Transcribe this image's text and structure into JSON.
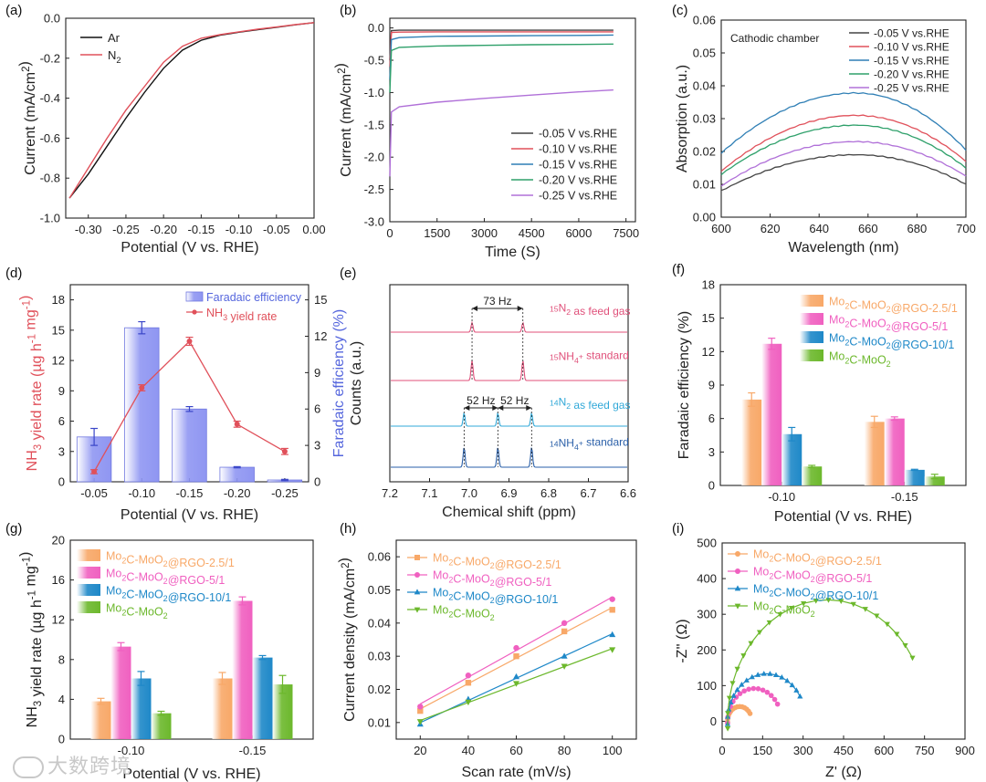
{
  "colors": {
    "ar": "#111111",
    "n2": "#e0505a",
    "v005": "#444444",
    "v010": "#e0505a",
    "v015": "#2f7fb5",
    "v020": "#2ea06a",
    "v025": "#b070d8",
    "nh3": "#e0505a",
    "fe_bar": "#8f96f2",
    "fe_axis": "#5566dd",
    "m25": "#f8a868",
    "m5": "#f060c0",
    "m10": "#1e88c8",
    "m0": "#6cb82c",
    "nmr15": "#e0507a",
    "nmr14": "#30a8d8",
    "nmr14std": "#2a5fa8"
  },
  "watermark": "大数跨境",
  "chart_data": [
    {
      "panel": "(a)",
      "type": "line",
      "xlabel": "Potential (V vs. RHE)",
      "ylabel": "Current (mA/cm²)",
      "xlim": [
        -0.33,
        0.0
      ],
      "ylim": [
        -1.0,
        0.0
      ],
      "xticks": [
        "-0.30",
        "-0.25",
        "-0.20",
        "-0.15",
        "-0.10",
        "-0.05",
        "0.00"
      ],
      "yticks": [
        "0.0",
        "-0.2",
        "-0.4",
        "-0.6",
        "-0.8",
        "-1.0"
      ],
      "legend": "top-left",
      "series": [
        {
          "name": "Ar",
          "x": [
            -0.325,
            -0.3,
            -0.275,
            -0.25,
            -0.225,
            -0.2,
            -0.175,
            -0.15,
            -0.125,
            -0.1,
            -0.075,
            -0.05,
            -0.025,
            0.0
          ],
          "y": [
            -0.9,
            -0.78,
            -0.64,
            -0.5,
            -0.37,
            -0.25,
            -0.16,
            -0.11,
            -0.085,
            -0.07,
            -0.057,
            -0.045,
            -0.033,
            -0.022
          ]
        },
        {
          "name": "N2",
          "x": [
            -0.325,
            -0.3,
            -0.275,
            -0.25,
            -0.225,
            -0.2,
            -0.175,
            -0.15,
            -0.125,
            -0.1,
            -0.075,
            -0.05,
            -0.025,
            0.0
          ],
          "y": [
            -0.9,
            -0.75,
            -0.6,
            -0.46,
            -0.34,
            -0.22,
            -0.14,
            -0.1,
            -0.082,
            -0.068,
            -0.055,
            -0.044,
            -0.032,
            -0.022
          ]
        }
      ]
    },
    {
      "panel": "(b)",
      "type": "line",
      "xlabel": "Time (S)",
      "ylabel": "Current (mA/cm²)",
      "xlim": [
        0,
        7800
      ],
      "ylim": [
        -3.0,
        0.15
      ],
      "xticks": [
        "0",
        "1500",
        "3000",
        "4500",
        "6000",
        "7500"
      ],
      "yticks": [
        "0.0",
        "-0.5",
        "-1.0",
        "-1.5",
        "-2.0",
        "-2.5",
        "-3.0"
      ],
      "legend": "bottom-right",
      "series": [
        {
          "name": "-0.05 V vs.RHE",
          "x": [
            0,
            50,
            300,
            1500,
            3000,
            4500,
            6000,
            7100
          ],
          "y": [
            -0.5,
            -0.04,
            -0.035,
            -0.035,
            -0.035,
            -0.035,
            -0.035,
            -0.035
          ]
        },
        {
          "name": "-0.10 V vs.RHE",
          "x": [
            0,
            50,
            300,
            1500,
            3000,
            4500,
            6000,
            7100
          ],
          "y": [
            -0.6,
            -0.07,
            -0.065,
            -0.06,
            -0.06,
            -0.06,
            -0.06,
            -0.06
          ]
        },
        {
          "name": "-0.15 V vs.RHE",
          "x": [
            0,
            50,
            300,
            1500,
            3000,
            4500,
            6000,
            7100
          ],
          "y": [
            -0.8,
            -0.18,
            -0.15,
            -0.13,
            -0.125,
            -0.12,
            -0.115,
            -0.11
          ]
        },
        {
          "name": "-0.20 V vs.RHE",
          "x": [
            0,
            50,
            300,
            1500,
            3000,
            4500,
            6000,
            7100
          ],
          "y": [
            -1.0,
            -0.35,
            -0.3,
            -0.28,
            -0.27,
            -0.26,
            -0.255,
            -0.25
          ]
        },
        {
          "name": "-0.25 V vs.RHE",
          "x": [
            0,
            50,
            300,
            1500,
            3000,
            4500,
            6000,
            7100
          ],
          "y": [
            -2.3,
            -1.3,
            -1.22,
            -1.15,
            -1.09,
            -1.04,
            -0.99,
            -0.96
          ]
        }
      ]
    },
    {
      "panel": "(c)",
      "type": "line",
      "xlabel": "Wavelength (nm)",
      "ylabel": "Absorption (a.u.)",
      "xlim": [
        600,
        700
      ],
      "ylim": [
        0.0,
        0.06
      ],
      "xticks": [
        "600",
        "620",
        "640",
        "660",
        "680",
        "700"
      ],
      "yticks": [
        "0.00",
        "0.01",
        "0.02",
        "0.03",
        "0.04",
        "0.05",
        "0.06"
      ],
      "annotation": "Cathodic chamber",
      "legend": "top-right",
      "series": [
        {
          "name": "-0.05 V vs.RHE",
          "peak": 0.019,
          "edgeL": 0.008,
          "edgeR": 0.01
        },
        {
          "name": "-0.10 V vs.RHE",
          "peak": 0.031,
          "edgeL": 0.014,
          "edgeR": 0.017
        },
        {
          "name": "-0.15 V vs.RHE",
          "peak": 0.0378,
          "edgeL": 0.0195,
          "edgeR": 0.0205
        },
        {
          "name": "-0.20 V vs.RHE",
          "peak": 0.028,
          "edgeL": 0.013,
          "edgeR": 0.015
        },
        {
          "name": "-0.25 V vs.RHE",
          "peak": 0.023,
          "edgeL": 0.0095,
          "edgeR": 0.0125
        }
      ]
    },
    {
      "panel": "(d)",
      "type": "bar+line",
      "categories": [
        "-0.05",
        "-0.10",
        "-0.15",
        "-0.20",
        "-0.25"
      ],
      "xlabel": "Potential (V vs. RHE)",
      "ylabel": "NH3 yield rate (µg h⁻¹ mg⁻¹)",
      "ylabel_right": "Faradaic efficiency (%)",
      "ylim": [
        0,
        19.5
      ],
      "ylim_right": [
        0,
        16.25
      ],
      "yticks": [
        "0",
        "3",
        "6",
        "9",
        "12",
        "15",
        "18"
      ],
      "yticks_right": [
        "0",
        "3",
        "6",
        "9",
        "12",
        "15"
      ],
      "legend": "top-right",
      "bar_series": {
        "name": "Faradaic efficiency",
        "values": [
          3.7,
          12.7,
          6.0,
          1.2,
          0.15
        ],
        "err": [
          0.7,
          0.5,
          0.2,
          0.05,
          0.05
        ]
      },
      "line_series": {
        "name": "NH3 yield rate",
        "values": [
          1.0,
          9.3,
          13.9,
          5.7,
          3.0
        ],
        "err": [
          0.2,
          0.3,
          0.4,
          0.3,
          0.3
        ]
      }
    },
    {
      "panel": "(e)",
      "type": "line",
      "xlabel": "Chemical shift (ppm)",
      "ylabel": "Counts (a.u.)",
      "xlim": [
        7.2,
        6.6
      ],
      "xticks": [
        "7.2",
        "7.1",
        "7.0",
        "6.9",
        "6.8",
        "6.7",
        "6.6"
      ],
      "annotations": [
        "73 Hz",
        "52 Hz",
        "52 Hz"
      ],
      "series": [
        {
          "name": "15N2 as feed gas",
          "label_sup": "15",
          "label_main": "N",
          "label_sub": "2",
          "label_rest": " as feed gas",
          "peaks": [
            6.993,
            6.865
          ],
          "height": 0.4
        },
        {
          "name": "15NH4+ standard",
          "label_sup": "15",
          "label_main": "NH",
          "label_sub": "4",
          "label_supr": "+",
          "label_rest": " standard",
          "peaks": [
            6.993,
            6.865
          ],
          "height": 0.85
        },
        {
          "name": "14N2 as feed gas",
          "label_sup": "14",
          "label_main": "N",
          "label_sub": "2",
          "label_rest": " as feed gas",
          "peaks": [
            7.013,
            6.928,
            6.843
          ],
          "height": 0.55
        },
        {
          "name": "14NH4+ standard",
          "label_sup": "14",
          "label_main": "NH",
          "label_sub": "4",
          "label_supr": "+",
          "label_rest": " standard",
          "peaks": [
            7.013,
            6.928,
            6.843
          ],
          "height": 0.85
        }
      ]
    },
    {
      "panel": "(f)",
      "type": "bar",
      "categories": [
        "-0.10",
        "-0.15"
      ],
      "xlabel": "Potential (V vs. RHE)",
      "ylabel": "Faradaic efficiency (%)",
      "ylim": [
        0,
        18
      ],
      "yticks": [
        "0",
        "3",
        "6",
        "9",
        "12",
        "15",
        "18"
      ],
      "legend": "top-right",
      "series": [
        {
          "name": "Mo2C-MoO2@RGO-2.5/1",
          "values": [
            7.7,
            5.7
          ],
          "err": [
            0.6,
            0.5
          ]
        },
        {
          "name": "Mo2C-MoO2@RGO-5/1",
          "values": [
            12.7,
            6.0
          ],
          "err": [
            0.5,
            0.15
          ]
        },
        {
          "name": "Mo2C-MoO2@RGO-10/1",
          "values": [
            4.6,
            1.4
          ],
          "err": [
            0.6,
            0.05
          ]
        },
        {
          "name": "Mo2C-MoO2",
          "values": [
            1.7,
            0.8
          ],
          "err": [
            0.1,
            0.2
          ]
        }
      ]
    },
    {
      "panel": "(g)",
      "type": "bar",
      "categories": [
        "-0.10",
        "-0.15"
      ],
      "xlabel": "Potential (V vs. RHE)",
      "ylabel": "NH3 yield rate (µg h⁻¹ mg⁻¹)",
      "ylim": [
        0,
        20
      ],
      "yticks": [
        "0",
        "4",
        "8",
        "12",
        "16",
        "20"
      ],
      "legend": "top-left",
      "series": [
        {
          "name": "Mo2C-MoO2@RGO-2.5/1",
          "values": [
            3.8,
            6.1
          ],
          "err": [
            0.3,
            0.6
          ]
        },
        {
          "name": "Mo2C-MoO2@RGO-5/1",
          "values": [
            9.3,
            13.9
          ],
          "err": [
            0.4,
            0.4
          ]
        },
        {
          "name": "Mo2C-MoO2@RGO-10/1",
          "values": [
            6.1,
            8.2
          ],
          "err": [
            0.7,
            0.2
          ]
        },
        {
          "name": "Mo2C-MoO2",
          "values": [
            2.6,
            5.5
          ],
          "err": [
            0.2,
            0.9
          ]
        }
      ]
    },
    {
      "panel": "(h)",
      "type": "scatter",
      "xlabel": "Scan rate (mV/s)",
      "ylabel": "Current density (mA/cm²)",
      "xlim": [
        10,
        110
      ],
      "ylim": [
        0.005,
        0.065
      ],
      "xticks": [
        "20",
        "40",
        "60",
        "80",
        "100"
      ],
      "yticks": [
        "0.01",
        "0.02",
        "0.03",
        "0.04",
        "0.05",
        "0.06"
      ],
      "legend": "top-left",
      "x": [
        20,
        40,
        60,
        80,
        100
      ],
      "series": [
        {
          "name": "Mo2C-MoO2@RGO-2.5/1",
          "marker": "square",
          "values": [
            0.0135,
            0.022,
            0.03,
            0.0375,
            0.044
          ]
        },
        {
          "name": "Mo2C-MoO2@RGO-5/1",
          "marker": "circle",
          "values": [
            0.0148,
            0.0242,
            0.0325,
            0.04,
            0.0472
          ]
        },
        {
          "name": "Mo2C-MoO2@RGO-10/1",
          "marker": "triangle-up",
          "values": [
            0.0095,
            0.017,
            0.0238,
            0.03,
            0.0365
          ]
        },
        {
          "name": "Mo2C-MoO2",
          "marker": "triangle-down",
          "values": [
            0.0103,
            0.0162,
            0.0218,
            0.027,
            0.032
          ]
        }
      ]
    },
    {
      "panel": "(i)",
      "type": "scatter",
      "xlabel": "Z' (Ω)",
      "ylabel": "-Z'' (Ω)",
      "xlim": [
        0,
        900
      ],
      "ylim": [
        -50,
        500
      ],
      "xticks": [
        "0",
        "150",
        "300",
        "450",
        "600",
        "750",
        "900"
      ],
      "yticks": [
        "0",
        "100",
        "200",
        "300",
        "400",
        "500"
      ],
      "legend": "top-left",
      "series": [
        {
          "name": "Mo2C-MoO2@RGO-2.5/1",
          "marker": "circle",
          "x0": 20,
          "x1": 110,
          "n": 14
        },
        {
          "name": "Mo2C-MoO2@RGO-5/1",
          "marker": "circle",
          "x0": 20,
          "x1": 220,
          "n": 16
        },
        {
          "name": "Mo2C-MoO2@RGO-10/1",
          "marker": "triangle-up",
          "x0": 20,
          "x1": 310,
          "n": 18
        },
        {
          "name": "Mo2C-MoO2",
          "marker": "triangle-down",
          "x0": 20,
          "x1": 760,
          "n": 22
        }
      ]
    }
  ]
}
